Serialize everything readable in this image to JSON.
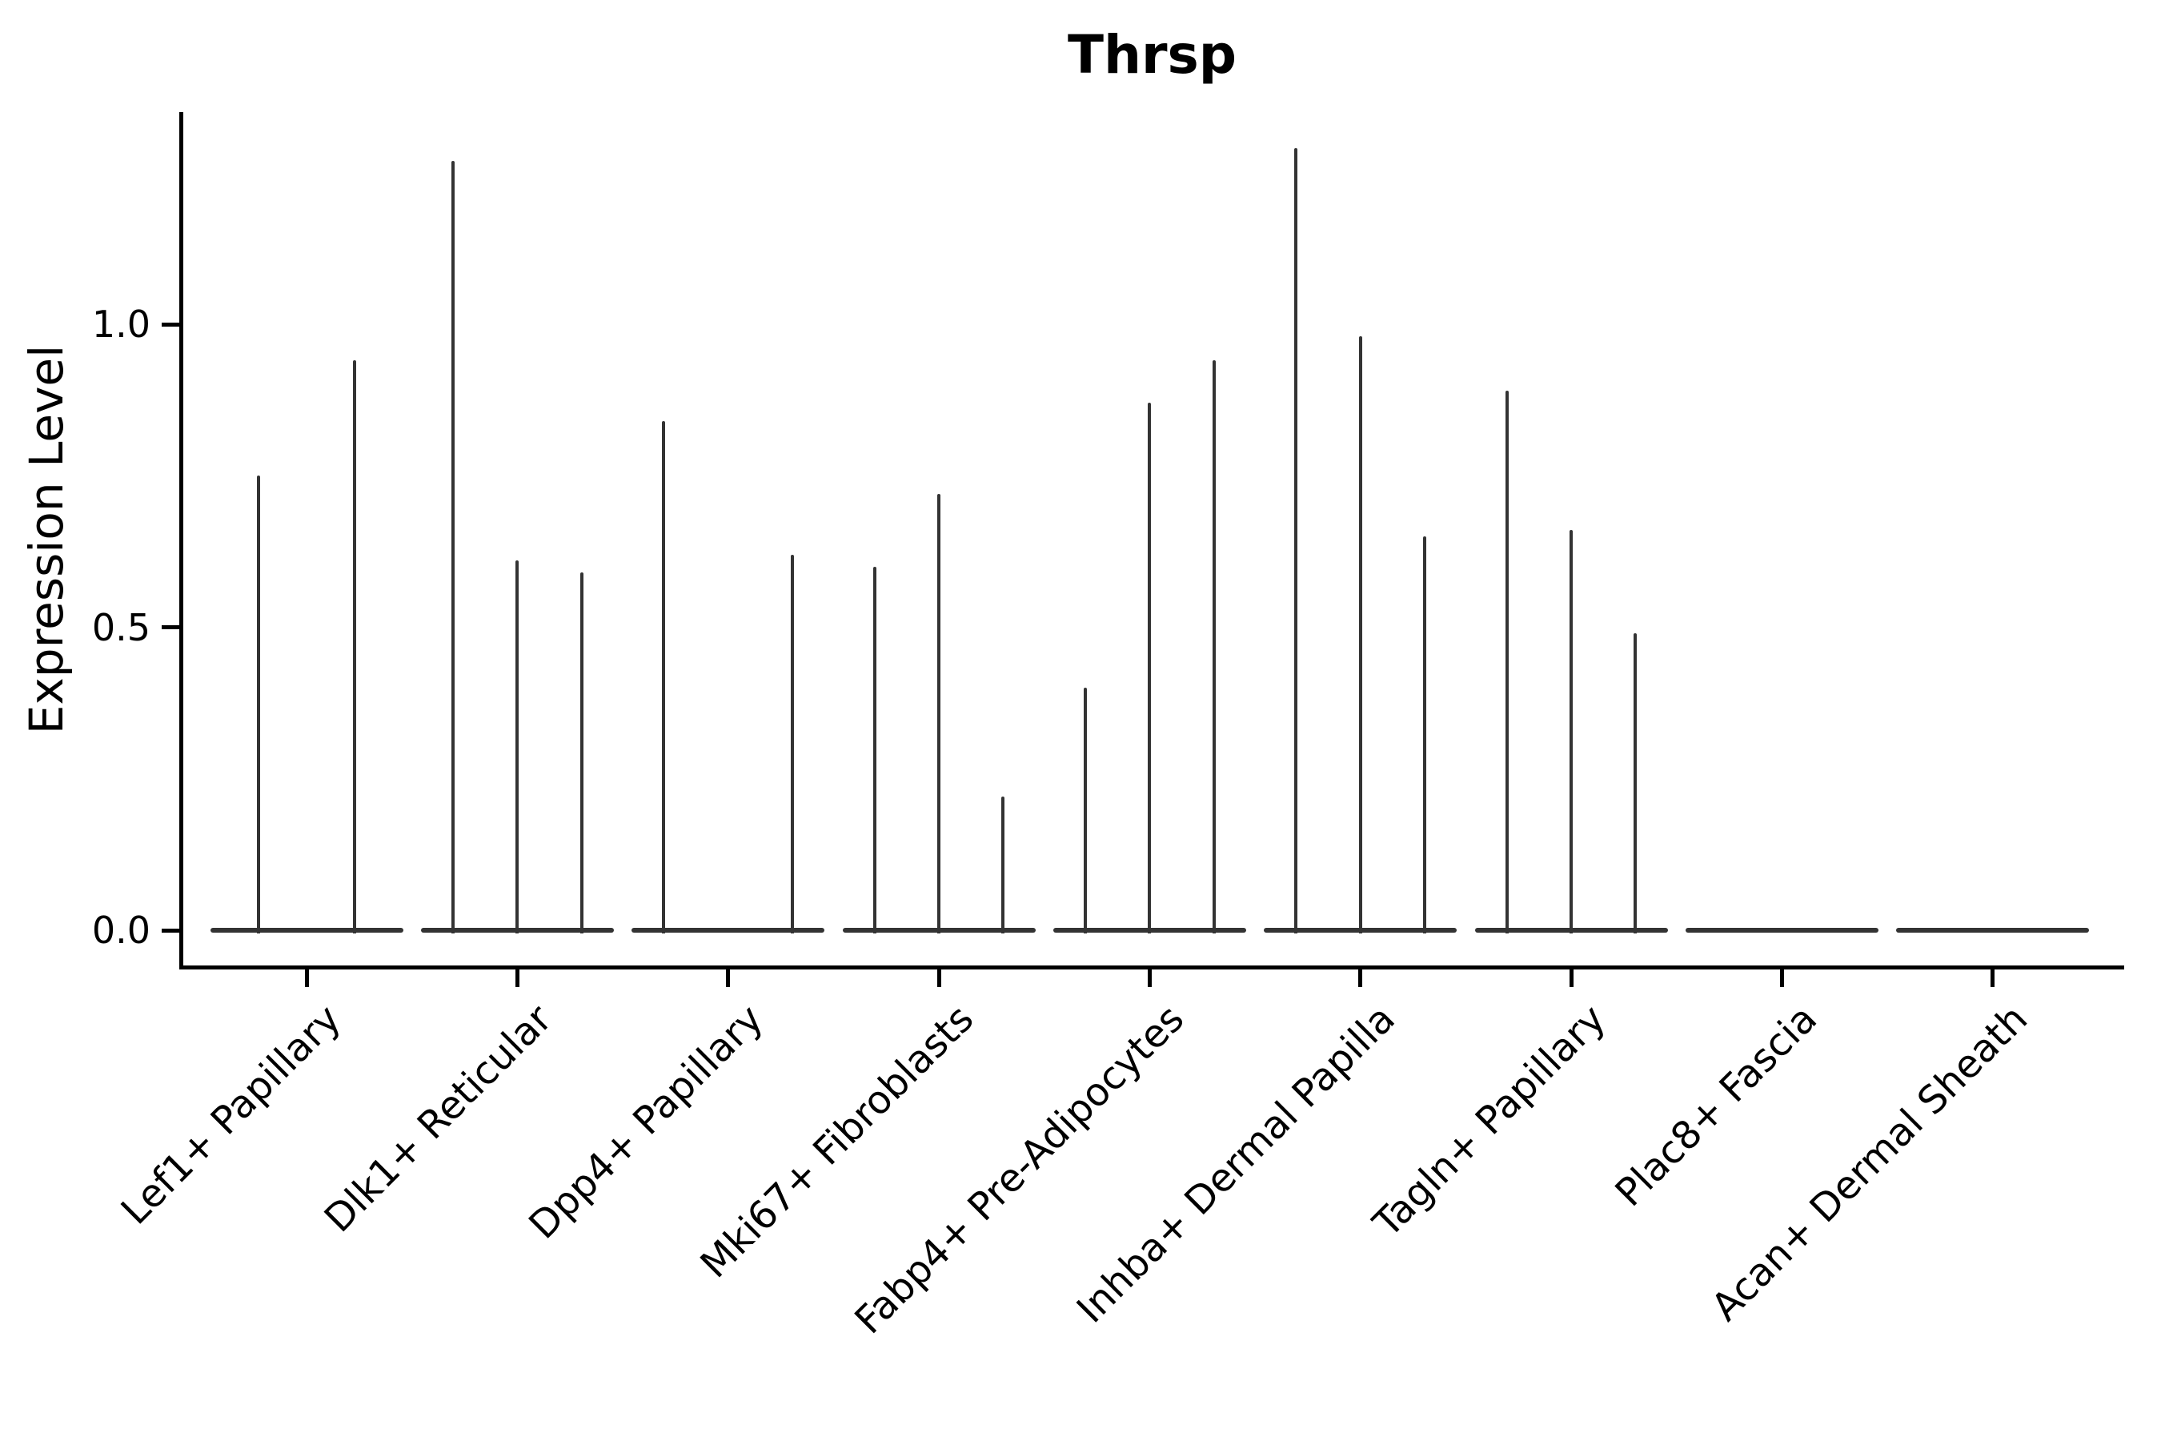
{
  "title": "Thrsp",
  "ylabel": "Expression Level",
  "chart_data": {
    "type": "violin",
    "title": "Thrsp",
    "xlabel": "",
    "ylabel": "Expression Level",
    "ylim": [
      -0.06,
      1.35
    ],
    "grid": false,
    "legend": "none",
    "yticks": [
      {
        "label": "0.0",
        "value": 0.0
      },
      {
        "label": "0.5",
        "value": 0.5
      },
      {
        "label": "1.0",
        "value": 1.0
      }
    ],
    "categories": [
      "Lef1+ Papillary",
      "Dlk1+ Reticular",
      "Dpp4+ Papillary",
      "Mki67+ Fibroblasts",
      "Fabp4+ Pre-Adipocytes",
      "Inhba+ Dermal Papilla",
      "Tagln+ Papillary",
      "Plac8+ Fascia",
      "Acan+ Dermal Sheath"
    ],
    "groups": [
      {
        "category": "Lef1+ Papillary",
        "violin_max_values": [
          0.75,
          0.94
        ]
      },
      {
        "category": "Dlk1+ Reticular",
        "violin_max_values": [
          1.27,
          0.61,
          0.59
        ]
      },
      {
        "category": "Dpp4+ Papillary",
        "violin_max_values": [
          0.84,
          0.0,
          0.62
        ]
      },
      {
        "category": "Mki67+ Fibroblasts",
        "violin_max_values": [
          0.6,
          0.72,
          0.22
        ]
      },
      {
        "category": "Fabp4+ Pre-Adipocytes",
        "violin_max_values": [
          0.4,
          0.87,
          0.94
        ]
      },
      {
        "category": "Inhba+ Dermal Papilla",
        "violin_max_values": [
          1.29,
          0.98,
          0.65
        ]
      },
      {
        "category": "Tagln+ Papillary",
        "violin_max_values": [
          0.89,
          0.66,
          0.49
        ]
      },
      {
        "category": "Plac8+ Fascia",
        "violin_max_values": [
          0.0,
          0.0,
          0.0
        ]
      },
      {
        "category": "Acan+ Dermal Sheath",
        "violin_max_values": [
          0.0,
          0.0,
          0.0
        ]
      }
    ],
    "violin_color": "#333333",
    "axis_color": "#000000",
    "description": "Violin plot of Thrsp expression level per fibroblast cluster; each category contains 2-3 very thin violins (flat base at 0 with a thin spike up to the max expression value)."
  }
}
